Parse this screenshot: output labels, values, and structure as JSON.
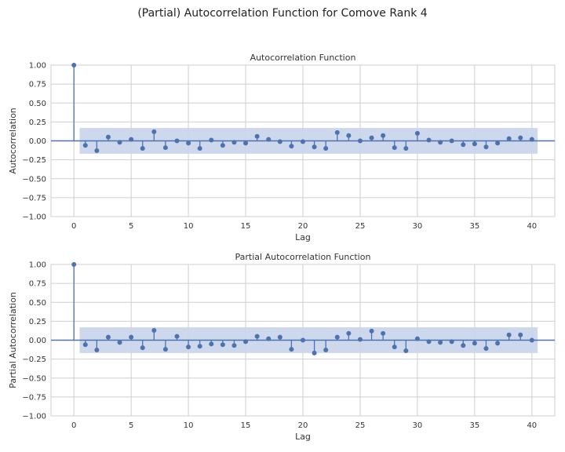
{
  "figure": {
    "title": "(Partial) Autocorrelation Function for Comove Rank 4"
  },
  "chart_data": [
    {
      "type": "stem",
      "title": "Autocorrelation Function",
      "xlabel": "Lag",
      "ylabel": "Autocorrelation",
      "xlim": [
        -2,
        42
      ],
      "ylim": [
        -1.0,
        1.0
      ],
      "xticks": [
        "0",
        "5",
        "10",
        "15",
        "20",
        "25",
        "30",
        "35",
        "40"
      ],
      "yticks": [
        "1.00",
        "0.75",
        "0.50",
        "0.25",
        "0.00",
        "−0.25",
        "−0.50",
        "−0.75",
        "−1.00"
      ],
      "grid": true,
      "lags": [
        0,
        1,
        2,
        3,
        4,
        5,
        6,
        7,
        8,
        9,
        10,
        11,
        12,
        13,
        14,
        15,
        16,
        17,
        18,
        19,
        20,
        21,
        22,
        23,
        24,
        25,
        26,
        27,
        28,
        29,
        30,
        31,
        32,
        33,
        34,
        35,
        36,
        37,
        38,
        39,
        40
      ],
      "values": [
        1.0,
        -0.06,
        -0.13,
        0.05,
        -0.02,
        0.02,
        -0.1,
        0.12,
        -0.09,
        0.0,
        -0.03,
        -0.1,
        0.01,
        -0.06,
        -0.02,
        -0.03,
        0.06,
        0.02,
        -0.01,
        -0.07,
        -0.01,
        -0.08,
        -0.1,
        0.11,
        0.07,
        0.0,
        0.04,
        0.07,
        -0.09,
        -0.1,
        0.1,
        0.01,
        -0.02,
        0.0,
        -0.05,
        -0.04,
        -0.08,
        -0.03,
        0.03,
        0.04,
        0.02
      ],
      "confint_upper": 0.17,
      "confint_lower": -0.17,
      "colors": {
        "stem": "#4c72b0",
        "band": "#c8d4ea",
        "zero": "#4c72b0",
        "grid": "#cfcfcf"
      }
    },
    {
      "type": "stem",
      "title": "Partial Autocorrelation Function",
      "xlabel": "Lag",
      "ylabel": "Partial Autocorrelation",
      "xlim": [
        -2,
        42
      ],
      "ylim": [
        -1.0,
        1.0
      ],
      "xticks": [
        "0",
        "5",
        "10",
        "15",
        "20",
        "25",
        "30",
        "35",
        "40"
      ],
      "yticks": [
        "1.00",
        "0.75",
        "0.50",
        "0.25",
        "0.00",
        "−0.25",
        "−0.50",
        "−0.75",
        "−1.00"
      ],
      "grid": true,
      "lags": [
        0,
        1,
        2,
        3,
        4,
        5,
        6,
        7,
        8,
        9,
        10,
        11,
        12,
        13,
        14,
        15,
        16,
        17,
        18,
        19,
        20,
        21,
        22,
        23,
        24,
        25,
        26,
        27,
        28,
        29,
        30,
        31,
        32,
        33,
        34,
        35,
        36,
        37,
        38,
        39,
        40
      ],
      "values": [
        1.0,
        -0.06,
        -0.13,
        0.04,
        -0.03,
        0.04,
        -0.1,
        0.13,
        -0.12,
        0.05,
        -0.09,
        -0.08,
        -0.05,
        -0.06,
        -0.07,
        -0.02,
        0.05,
        0.02,
        0.04,
        -0.12,
        0.0,
        -0.17,
        -0.13,
        0.04,
        0.09,
        0.01,
        0.12,
        0.09,
        -0.09,
        -0.14,
        0.02,
        -0.02,
        -0.03,
        -0.02,
        -0.07,
        -0.04,
        -0.11,
        -0.04,
        0.07,
        0.07,
        0.0
      ],
      "confint_upper": 0.17,
      "confint_lower": -0.17,
      "colors": {
        "stem": "#4c72b0",
        "band": "#c8d4ea",
        "zero": "#4c72b0",
        "grid": "#cfcfcf"
      }
    }
  ]
}
